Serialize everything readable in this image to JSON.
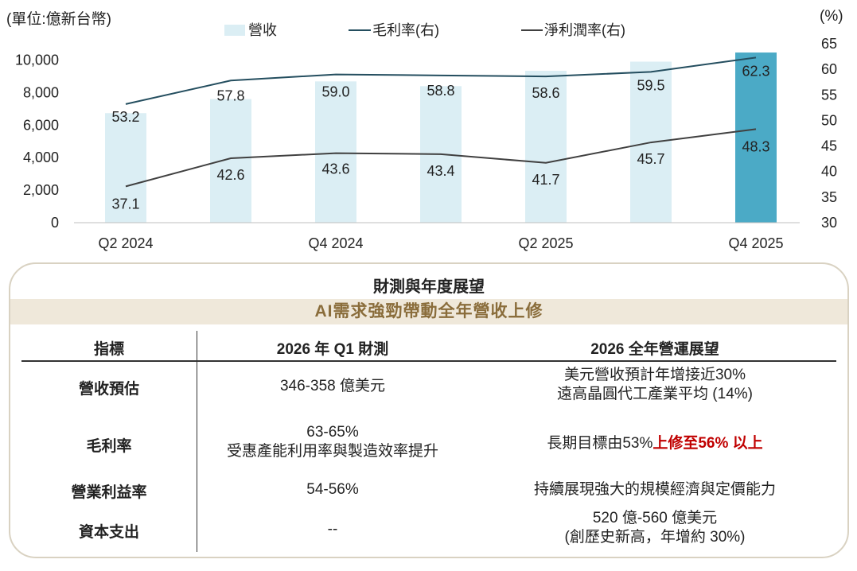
{
  "chart_data": {
    "type": "bar+line",
    "unit_label": "(單位:億新台幣)",
    "right_unit_label": "(%)",
    "legend": {
      "bar": "營收",
      "gross": "毛利率(右)",
      "net": "淨利潤率(右)"
    },
    "x_tick_labels": [
      "Q2 2024",
      "",
      "Q4 2024",
      "",
      "Q2 2025",
      "",
      "Q4 2025"
    ],
    "revenue": [
      6735,
      7597,
      8684,
      8393,
      9338,
      9900,
      10460
    ],
    "gross_margin": [
      53.2,
      57.8,
      59.0,
      58.8,
      58.6,
      59.5,
      62.3
    ],
    "net_margin": [
      37.1,
      42.6,
      43.6,
      43.4,
      41.7,
      45.7,
      48.3
    ],
    "left_ticks": [
      "0",
      "2,000",
      "4,000",
      "6,000",
      "8,000",
      "10,000"
    ],
    "left_axis": [
      0,
      11000
    ],
    "right_ticks": [
      "30",
      "35",
      "40",
      "45",
      "50",
      "55",
      "60",
      "65"
    ],
    "right_axis": [
      30,
      65
    ],
    "colors": {
      "bar": "#dbeef4",
      "bar_highlight": "#4baac6",
      "gross": "#244e5f",
      "net": "#404040"
    }
  },
  "outlook": {
    "title": "財測與年度展望",
    "subtitle": "AI需求強勁帶動全年營收上修",
    "headers": [
      "指標",
      "2026 年 Q1 財測",
      "2026 全年營運展望"
    ],
    "rows": [
      {
        "label": "營收預估",
        "q1": "346-358 億美元",
        "q1b": "",
        "year1": "美元營收預計年增接近30%",
        "year2": "遠高晶圓代工產業平均 (14%)"
      },
      {
        "label": "毛利率",
        "q1": "63-65%",
        "q1b": "受惠產能利用率與製造效率提升",
        "year_pre": "長期目標由53%",
        "year_red": "上修至56% 以上"
      },
      {
        "label": "營業利益率",
        "q1": "54-56%",
        "q1b": "",
        "year1": "持續展現強大的規模經濟與定價能力",
        "year2": ""
      },
      {
        "label": "資本支出",
        "q1": "--",
        "q1b": "",
        "year1": "520 億-560 億美元",
        "year2": "(創歷史新高，年增約 30%)"
      }
    ]
  }
}
